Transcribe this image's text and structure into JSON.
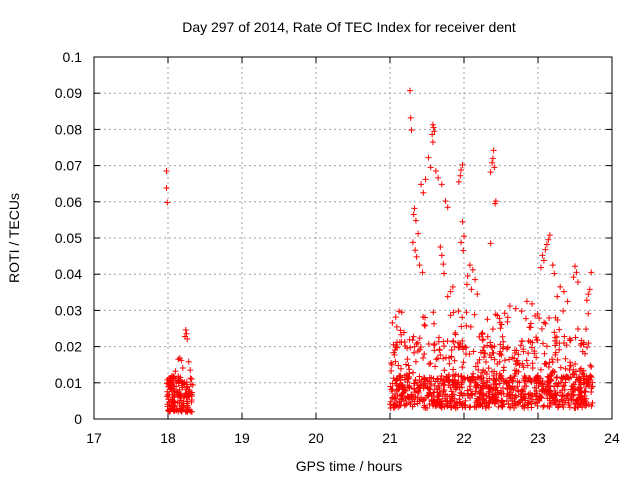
{
  "chart_data": {
    "type": "scatter",
    "title": "Day 297 of 2014, Rate Of TEC Index for receiver dent",
    "xlabel": "GPS time / hours",
    "ylabel": "ROTI / TECUs",
    "xlim": [
      17,
      24
    ],
    "ylim": [
      0,
      0.1
    ],
    "xticks": [
      "17",
      "18",
      "19",
      "20",
      "21",
      "22",
      "23",
      "24"
    ],
    "yticks": [
      "0",
      "0.01",
      "0.02",
      "0.03",
      "0.04",
      "0.05",
      "0.06",
      "0.07",
      "0.08",
      "0.09",
      "0.1"
    ],
    "grid": true,
    "marker": "plus",
    "color": "#ff0000",
    "series": [
      {
        "name": "ROTI",
        "points": [
          [
            17.98,
            0.0685
          ],
          [
            17.98,
            0.0638
          ],
          [
            17.99,
            0.0598
          ],
          [
            18.24,
            0.0246
          ],
          [
            18.25,
            0.0236
          ],
          [
            18.23,
            0.0228
          ],
          [
            18.26,
            0.0221
          ],
          [
            18.14,
            0.0165
          ],
          [
            18.16,
            0.0168
          ],
          [
            18.18,
            0.0162
          ],
          [
            18.28,
            0.0158
          ],
          [
            18.1,
            0.0132
          ],
          [
            18.2,
            0.0141
          ],
          [
            18.3,
            0.0135
          ],
          [
            21.27,
            0.0907
          ],
          [
            21.28,
            0.0832
          ],
          [
            21.29,
            0.0798
          ],
          [
            21.58,
            0.0813
          ],
          [
            21.59,
            0.0805
          ],
          [
            21.6,
            0.0795
          ],
          [
            21.57,
            0.0786
          ],
          [
            21.58,
            0.0765
          ],
          [
            21.52,
            0.0722
          ],
          [
            21.55,
            0.0695
          ],
          [
            21.48,
            0.0662
          ],
          [
            21.42,
            0.0648
          ],
          [
            21.45,
            0.0625
          ],
          [
            21.62,
            0.0685
          ],
          [
            21.65,
            0.0666
          ],
          [
            21.7,
            0.0648
          ],
          [
            21.75,
            0.0602
          ],
          [
            21.78,
            0.0585
          ],
          [
            21.98,
            0.0702
          ],
          [
            21.96,
            0.0688
          ],
          [
            21.95,
            0.0672
          ],
          [
            21.93,
            0.0655
          ],
          [
            22.4,
            0.0742
          ],
          [
            22.39,
            0.072
          ],
          [
            22.38,
            0.0708
          ],
          [
            22.41,
            0.0695
          ],
          [
            22.36,
            0.0682
          ],
          [
            22.43,
            0.0602
          ],
          [
            22.42,
            0.0595
          ],
          [
            22.36,
            0.0485
          ],
          [
            21.33,
            0.0582
          ],
          [
            21.32,
            0.0565
          ],
          [
            21.35,
            0.0548
          ],
          [
            21.38,
            0.0512
          ],
          [
            21.31,
            0.0488
          ],
          [
            21.34,
            0.0466
          ],
          [
            21.36,
            0.0448
          ],
          [
            21.4,
            0.0425
          ],
          [
            21.44,
            0.0405
          ],
          [
            21.68,
            0.0475
          ],
          [
            21.7,
            0.0452
          ],
          [
            21.72,
            0.0428
          ],
          [
            21.73,
            0.0402
          ],
          [
            21.98,
            0.0545
          ],
          [
            22.0,
            0.0505
          ],
          [
            21.96,
            0.0488
          ],
          [
            21.99,
            0.0465
          ],
          [
            22.08,
            0.0425
          ],
          [
            22.12,
            0.0412
          ],
          [
            22.05,
            0.0395
          ],
          [
            22.15,
            0.0385
          ],
          [
            22.04,
            0.0372
          ],
          [
            22.1,
            0.0358
          ],
          [
            22.18,
            0.0345
          ],
          [
            21.85,
            0.0365
          ],
          [
            21.82,
            0.0352
          ],
          [
            21.78,
            0.0338
          ],
          [
            23.12,
            0.0482
          ],
          [
            23.16,
            0.0508
          ],
          [
            23.14,
            0.0495
          ],
          [
            23.1,
            0.0468
          ],
          [
            23.06,
            0.0452
          ],
          [
            23.08,
            0.0438
          ],
          [
            23.2,
            0.0425
          ],
          [
            23.22,
            0.0402
          ],
          [
            23.04,
            0.0418
          ],
          [
            23.5,
            0.0422
          ],
          [
            23.52,
            0.0405
          ],
          [
            23.48,
            0.0392
          ],
          [
            23.54,
            0.0378
          ],
          [
            23.72,
            0.0405
          ],
          [
            23.7,
            0.0358
          ],
          [
            23.68,
            0.0345
          ],
          [
            23.66,
            0.0328
          ],
          [
            23.3,
            0.0365
          ],
          [
            23.35,
            0.0352
          ],
          [
            23.26,
            0.0338
          ],
          [
            23.4,
            0.0325
          ],
          [
            22.62,
            0.0312
          ],
          [
            22.7,
            0.0305
          ],
          [
            22.78,
            0.0298
          ],
          [
            22.85,
            0.0325
          ],
          [
            22.92,
            0.0318
          ],
          [
            22.55,
            0.0292
          ],
          [
            22.48,
            0.0278
          ],
          [
            22.96,
            0.0285
          ]
        ]
      }
    ]
  }
}
